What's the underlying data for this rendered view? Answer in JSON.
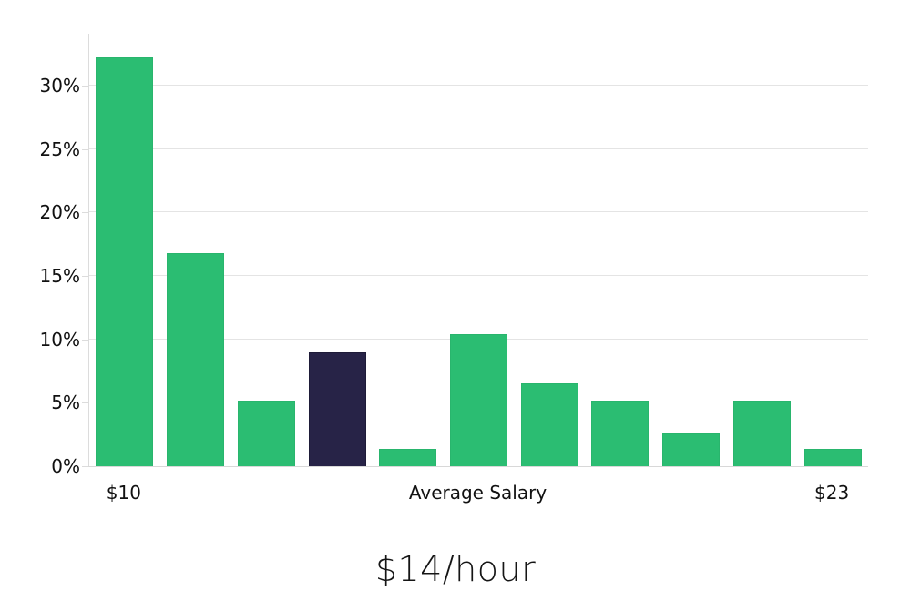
{
  "chart_data": {
    "type": "bar",
    "title": "$14/hour",
    "xlabel": "Average Salary",
    "x_tick_first": "$10",
    "x_tick_last": "$23",
    "ylabel": "",
    "y_unit": "%",
    "ylim": [
      0,
      34.1
    ],
    "grid": true,
    "legend": false,
    "y_ticks": [
      {
        "value": 0,
        "label": "0%"
      },
      {
        "value": 5,
        "label": "5%"
      },
      {
        "value": 10,
        "label": "10%"
      },
      {
        "value": 15,
        "label": "15%"
      },
      {
        "value": 20,
        "label": "20%"
      },
      {
        "value": 25,
        "label": "25%"
      },
      {
        "value": 30,
        "label": "30%"
      }
    ],
    "bars": [
      {
        "value": 32.2,
        "highlight": false
      },
      {
        "value": 16.8,
        "highlight": false
      },
      {
        "value": 5.2,
        "highlight": false
      },
      {
        "value": 9.0,
        "highlight": true
      },
      {
        "value": 1.4,
        "highlight": false
      },
      {
        "value": 10.4,
        "highlight": false
      },
      {
        "value": 6.5,
        "highlight": false
      },
      {
        "value": 5.2,
        "highlight": false
      },
      {
        "value": 2.6,
        "highlight": false
      },
      {
        "value": 5.2,
        "highlight": false
      },
      {
        "value": 1.4,
        "highlight": false
      }
    ],
    "colors": {
      "bar": "#2bbd72",
      "bar_edge": "#29b56d",
      "highlight": "#272347",
      "highlight_edge": "#1e1b38",
      "grid": "#e4e4e4",
      "axis": "#dcdcdc",
      "text": "#111111",
      "title_text": "#151515",
      "background": "#ffffff"
    }
  }
}
